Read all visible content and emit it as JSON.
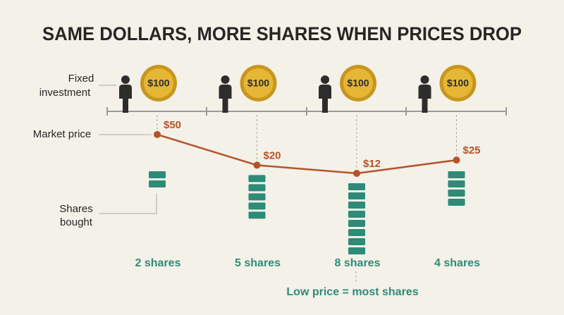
{
  "title": "SAME DOLLARS, MORE SHARES WHEN PRICES DROP",
  "row_labels": {
    "investment": [
      "Fixed",
      "investment"
    ],
    "price": "Market price",
    "shares": [
      "Shares",
      "bought"
    ]
  },
  "periods": [
    {
      "coin": "$100",
      "price": 50,
      "price_label": "$50",
      "shares": 2,
      "shares_label": "2 shares"
    },
    {
      "coin": "$100",
      "price": 20,
      "price_label": "$20",
      "shares": 5,
      "shares_label": "5 shares"
    },
    {
      "coin": "$100",
      "price": 12,
      "price_label": "$12",
      "shares": 8,
      "shares_label": "8 shares"
    },
    {
      "coin": "$100",
      "price": 25,
      "price_label": "$25",
      "shares": 4,
      "shares_label": "4 shares"
    }
  ],
  "note": "Low price = most shares"
}
